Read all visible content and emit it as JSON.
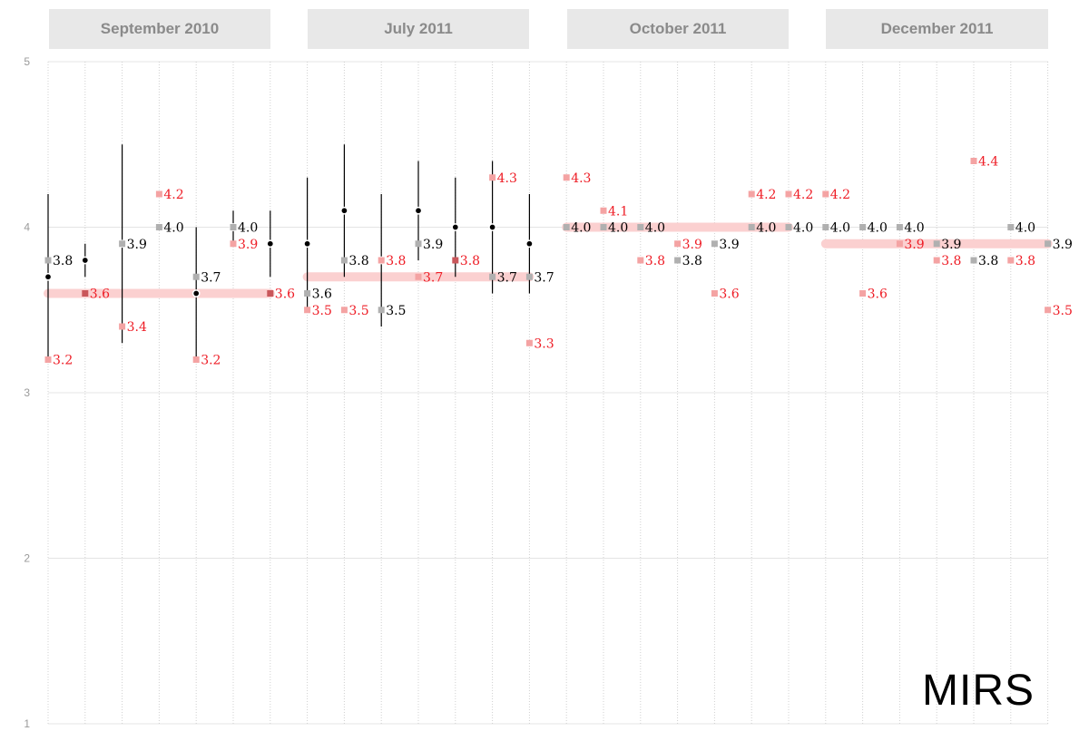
{
  "chart_data": {
    "type": "scatter",
    "title": "",
    "xlabel": "",
    "ylabel": "",
    "ylim": [
      1,
      5
    ],
    "yticks": [
      1,
      2,
      3,
      4,
      5
    ],
    "grid": true,
    "groups": [
      {
        "label": "September 2010",
        "start": 0,
        "end": 6,
        "avg": 3.6
      },
      {
        "label": "July 2011",
        "start": 7,
        "end": 13,
        "avg": 3.7
      },
      {
        "label": "October 2011",
        "start": 14,
        "end": 20,
        "avg": 4.0
      },
      {
        "label": "December 2011",
        "start": 21,
        "end": 27,
        "avg": 3.9
      }
    ],
    "intervals": [
      {
        "x": 0,
        "mean": 3.7,
        "low": 3.2,
        "high": 4.2
      },
      {
        "x": 1,
        "mean": 3.8,
        "low": 3.7,
        "high": 3.9
      },
      {
        "x": 2,
        "mean": 3.9,
        "low": 3.3,
        "high": 4.5
      },
      {
        "x": 3,
        "mean": 4.2,
        "low": 4.2,
        "high": 4.2
      },
      {
        "x": 4,
        "mean": 3.6,
        "low": 3.2,
        "high": 4.0
      },
      {
        "x": 5,
        "mean": 4.0,
        "low": 3.9,
        "high": 4.1
      },
      {
        "x": 6,
        "mean": 3.9,
        "low": 3.7,
        "high": 4.1
      },
      {
        "x": 7,
        "mean": 3.9,
        "low": 3.5,
        "high": 4.3
      },
      {
        "x": 8,
        "mean": 4.1,
        "low": 3.7,
        "high": 4.5
      },
      {
        "x": 9,
        "mean": 3.8,
        "low": 3.4,
        "high": 4.2
      },
      {
        "x": 10,
        "mean": 4.1,
        "low": 3.8,
        "high": 4.4
      },
      {
        "x": 11,
        "mean": 4.0,
        "low": 3.7,
        "high": 4.3
      },
      {
        "x": 12,
        "mean": 4.0,
        "low": 3.6,
        "high": 4.4
      },
      {
        "x": 13,
        "mean": 3.9,
        "low": 3.6,
        "high": 4.2
      }
    ],
    "points": [
      {
        "x": 0,
        "value": 3.8,
        "label": "3.8",
        "kind": "grey"
      },
      {
        "x": 0,
        "value": 3.2,
        "label": "3.2",
        "kind": "red"
      },
      {
        "x": 1,
        "value": 3.6,
        "label": "3.6",
        "kind": "both"
      },
      {
        "x": 2,
        "value": 3.9,
        "label": "3.9",
        "kind": "grey"
      },
      {
        "x": 2,
        "value": 3.4,
        "label": "3.4",
        "kind": "red"
      },
      {
        "x": 3,
        "value": 4.2,
        "label": "4.2",
        "kind": "red"
      },
      {
        "x": 3,
        "value": 4.0,
        "label": "4.0",
        "kind": "grey"
      },
      {
        "x": 4,
        "value": 3.7,
        "label": "3.7",
        "kind": "grey"
      },
      {
        "x": 4,
        "value": 3.2,
        "label": "3.2",
        "kind": "red"
      },
      {
        "x": 5,
        "value": 4.0,
        "label": "4.0",
        "kind": "grey"
      },
      {
        "x": 5,
        "value": 3.9,
        "label": "3.9",
        "kind": "red"
      },
      {
        "x": 6,
        "value": 3.6,
        "label": "3.6",
        "kind": "both"
      },
      {
        "x": 7,
        "value": 3.6,
        "label": "3.6",
        "kind": "grey"
      },
      {
        "x": 7,
        "value": 3.5,
        "label": "3.5",
        "kind": "red"
      },
      {
        "x": 8,
        "value": 3.8,
        "label": "3.8",
        "kind": "grey"
      },
      {
        "x": 8,
        "value": 3.5,
        "label": "3.5",
        "kind": "red"
      },
      {
        "x": 9,
        "value": 3.8,
        "label": "3.8",
        "kind": "red"
      },
      {
        "x": 9,
        "value": 3.5,
        "label": "3.5",
        "kind": "grey"
      },
      {
        "x": 10,
        "value": 3.9,
        "label": "3.9",
        "kind": "grey"
      },
      {
        "x": 10,
        "value": 3.7,
        "label": "3.7",
        "kind": "red"
      },
      {
        "x": 11,
        "value": 3.8,
        "label": "3.8",
        "kind": "both"
      },
      {
        "x": 12,
        "value": 4.3,
        "label": "4.3",
        "kind": "red"
      },
      {
        "x": 12,
        "value": 3.7,
        "label": "3.7",
        "kind": "grey"
      },
      {
        "x": 13,
        "value": 3.7,
        "label": "3.7",
        "kind": "grey"
      },
      {
        "x": 13,
        "value": 3.3,
        "label": "3.3",
        "kind": "red"
      },
      {
        "x": 14,
        "value": 4.3,
        "label": "4.3",
        "kind": "red"
      },
      {
        "x": 14,
        "value": 4.0,
        "label": "4.0",
        "kind": "grey"
      },
      {
        "x": 15,
        "value": 4.1,
        "label": "4.1",
        "kind": "red"
      },
      {
        "x": 15,
        "value": 4.0,
        "label": "4.0",
        "kind": "grey"
      },
      {
        "x": 16,
        "value": 4.0,
        "label": "4.0",
        "kind": "grey"
      },
      {
        "x": 16,
        "value": 3.8,
        "label": "3.8",
        "kind": "red"
      },
      {
        "x": 17,
        "value": 3.9,
        "label": "3.9",
        "kind": "red"
      },
      {
        "x": 17,
        "value": 3.8,
        "label": "3.8",
        "kind": "grey"
      },
      {
        "x": 18,
        "value": 3.9,
        "label": "3.9",
        "kind": "grey"
      },
      {
        "x": 18,
        "value": 3.6,
        "label": "3.6",
        "kind": "red"
      },
      {
        "x": 19,
        "value": 4.2,
        "label": "4.2",
        "kind": "red"
      },
      {
        "x": 19,
        "value": 4.0,
        "label": "4.0",
        "kind": "grey"
      },
      {
        "x": 20,
        "value": 4.2,
        "label": "4.2",
        "kind": "red"
      },
      {
        "x": 20,
        "value": 4.0,
        "label": "4.0",
        "kind": "grey"
      },
      {
        "x": 21,
        "value": 4.2,
        "label": "4.2",
        "kind": "red"
      },
      {
        "x": 21,
        "value": 4.0,
        "label": "4.0",
        "kind": "grey"
      },
      {
        "x": 22,
        "value": 4.0,
        "label": "4.0",
        "kind": "grey"
      },
      {
        "x": 22,
        "value": 3.6,
        "label": "3.6",
        "kind": "red"
      },
      {
        "x": 23,
        "value": 4.0,
        "label": "4.0",
        "kind": "grey"
      },
      {
        "x": 23,
        "value": 3.9,
        "label": "3.9",
        "kind": "red"
      },
      {
        "x": 24,
        "value": 3.9,
        "label": "3.9",
        "kind": "grey"
      },
      {
        "x": 24,
        "value": 3.8,
        "label": "3.8",
        "kind": "red"
      },
      {
        "x": 25,
        "value": 4.4,
        "label": "4.4",
        "kind": "red"
      },
      {
        "x": 25,
        "value": 3.8,
        "label": "3.8",
        "kind": "grey"
      },
      {
        "x": 26,
        "value": 4.0,
        "label": "4.0",
        "kind": "grey"
      },
      {
        "x": 26,
        "value": 3.8,
        "label": "3.8",
        "kind": "red"
      },
      {
        "x": 27,
        "value": 3.9,
        "label": "3.9",
        "kind": "grey"
      },
      {
        "x": 27,
        "value": 3.5,
        "label": "3.5",
        "kind": "red"
      }
    ]
  },
  "brand": "MIRS",
  "colors": {
    "red": "#ee1c25",
    "red_marker": "#f4a3a3",
    "both_marker": "#c9575b",
    "grey_marker": "#b0b0b0",
    "avg_band": "#fbd0d0",
    "header_bg": "#e8e8e8",
    "header_text": "#8a8a8a"
  }
}
